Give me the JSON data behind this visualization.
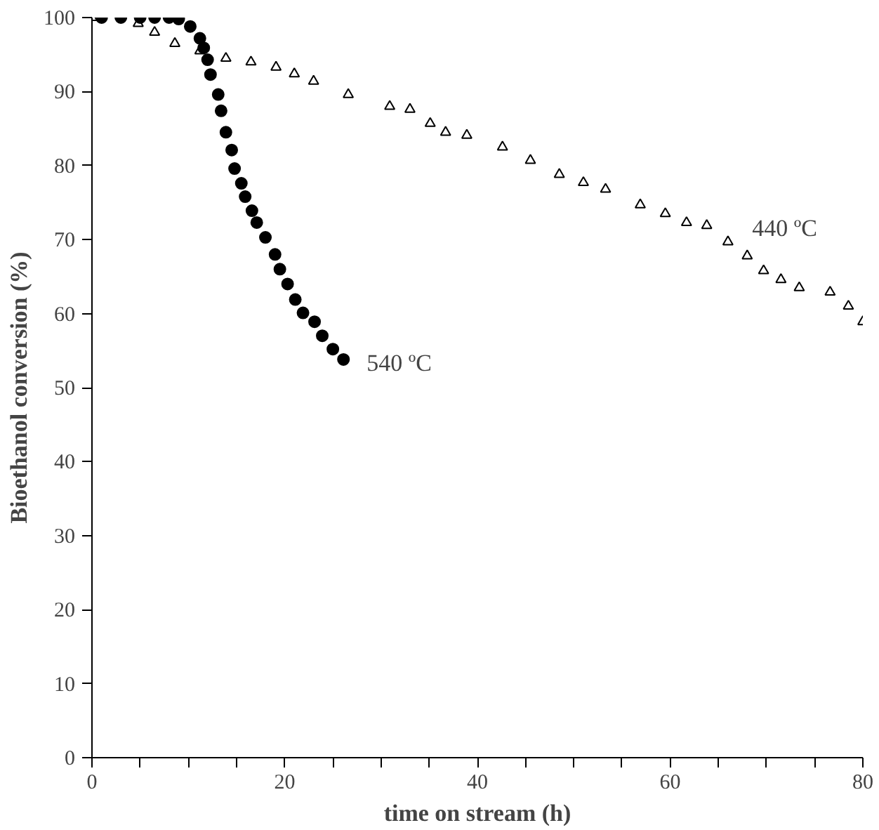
{
  "chart_data": {
    "type": "scatter",
    "xlabel": "time on stream (h)",
    "ylabel": "Bioethanol conversion (%)",
    "xlim": [
      0,
      80
    ],
    "ylim": [
      0,
      100
    ],
    "xticks": [
      0,
      {
        "value": 5,
        "label": null
      },
      {
        "value": 10,
        "label": null
      },
      {
        "value": 15,
        "label": null
      },
      20,
      {
        "value": 25,
        "label": null
      },
      {
        "value": 30,
        "label": null
      },
      {
        "value": 35,
        "label": null
      },
      40,
      {
        "value": 45,
        "label": null
      },
      {
        "value": 50,
        "label": null
      },
      {
        "value": 55,
        "label": null
      },
      60,
      {
        "value": 65,
        "label": null
      },
      {
        "value": 70,
        "label": null
      },
      {
        "value": 75,
        "label": null
      },
      80
    ],
    "yticks": [
      0,
      10,
      20,
      30,
      40,
      50,
      60,
      70,
      80,
      90,
      100
    ],
    "grid": false,
    "series": [
      {
        "color": "#000000",
        "marker": "circle",
        "x": [
          1,
          3,
          5,
          6.5,
          8,
          9,
          10.2,
          11.2,
          11.6,
          12.0,
          12.3,
          13.1,
          13.4,
          13.9,
          14.5,
          14.8,
          15.5,
          15.9,
          16.6,
          17.1,
          18.0,
          19.0,
          19.5,
          20.3,
          21.1,
          21.9,
          23.1,
          23.9,
          25.0,
          26.1
        ],
        "values": [
          100,
          100,
          100,
          100,
          100,
          99.8,
          98.8,
          97.2,
          95.9,
          94.3,
          92.3,
          89.6,
          87.4,
          84.5,
          82.1,
          79.6,
          77.6,
          75.8,
          73.9,
          72.3,
          70.3,
          68.0,
          66.0,
          64.0,
          61.9,
          60.1,
          58.9,
          57.0,
          55.2,
          53.8
        ]
      },
      {
        "color": "#000000",
        "marker": "triangle",
        "x": [
          0,
          4.8,
          6.5,
          8.6,
          11.2,
          13.9,
          16.5,
          19.1,
          21,
          23.0,
          26.6,
          30.9,
          33.0,
          35.1,
          36.7,
          38.9,
          42.6,
          45.5,
          48.5,
          51,
          53.3,
          56.9,
          59.5,
          61.7,
          63.8,
          66.0,
          68,
          69.7,
          71.5,
          73.4,
          76.6,
          78.5,
          80
        ],
        "values": [
          100,
          99.2,
          98,
          96.5,
          95.5,
          94.5,
          94,
          93.3,
          92.4,
          91.4,
          89.6,
          88.0,
          87.6,
          85.7,
          84.5,
          84.1,
          82.5,
          80.7,
          78.8,
          77.7,
          76.8,
          74.7,
          73.5,
          72.3,
          71.9,
          69.7,
          67.8,
          65.8,
          64.6,
          63.5,
          62.9,
          61,
          58.9
        ]
      }
    ],
    "annotations": [
      "440 ºC",
      "540 ºC"
    ]
  }
}
